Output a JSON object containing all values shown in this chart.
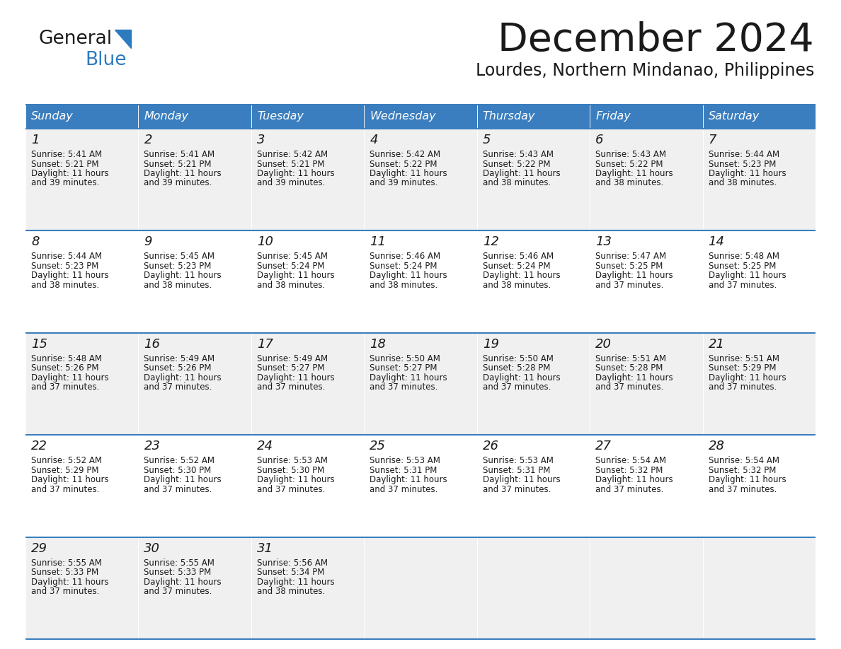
{
  "title": "December 2024",
  "subtitle": "Lourdes, Northern Mindanao, Philippines",
  "header_bg_color": "#3a7ebf",
  "header_text_color": "#ffffff",
  "cell_bg_even": "#f0f0f0",
  "cell_bg_odd": "#ffffff",
  "border_color": "#3a7ebf",
  "text_color": "#1a1a1a",
  "logo_text_color": "#2e86c1",
  "days_of_week": [
    "Sunday",
    "Monday",
    "Tuesday",
    "Wednesday",
    "Thursday",
    "Friday",
    "Saturday"
  ],
  "weeks": [
    [
      {
        "day": 1,
        "sunrise": "5:41 AM",
        "sunset": "5:21 PM",
        "daylight": "11 hours and 39 minutes."
      },
      {
        "day": 2,
        "sunrise": "5:41 AM",
        "sunset": "5:21 PM",
        "daylight": "11 hours and 39 minutes."
      },
      {
        "day": 3,
        "sunrise": "5:42 AM",
        "sunset": "5:21 PM",
        "daylight": "11 hours and 39 minutes."
      },
      {
        "day": 4,
        "sunrise": "5:42 AM",
        "sunset": "5:22 PM",
        "daylight": "11 hours and 39 minutes."
      },
      {
        "day": 5,
        "sunrise": "5:43 AM",
        "sunset": "5:22 PM",
        "daylight": "11 hours and 38 minutes."
      },
      {
        "day": 6,
        "sunrise": "5:43 AM",
        "sunset": "5:22 PM",
        "daylight": "11 hours and 38 minutes."
      },
      {
        "day": 7,
        "sunrise": "5:44 AM",
        "sunset": "5:23 PM",
        "daylight": "11 hours and 38 minutes."
      }
    ],
    [
      {
        "day": 8,
        "sunrise": "5:44 AM",
        "sunset": "5:23 PM",
        "daylight": "11 hours and 38 minutes."
      },
      {
        "day": 9,
        "sunrise": "5:45 AM",
        "sunset": "5:23 PM",
        "daylight": "11 hours and 38 minutes."
      },
      {
        "day": 10,
        "sunrise": "5:45 AM",
        "sunset": "5:24 PM",
        "daylight": "11 hours and 38 minutes."
      },
      {
        "day": 11,
        "sunrise": "5:46 AM",
        "sunset": "5:24 PM",
        "daylight": "11 hours and 38 minutes."
      },
      {
        "day": 12,
        "sunrise": "5:46 AM",
        "sunset": "5:24 PM",
        "daylight": "11 hours and 38 minutes."
      },
      {
        "day": 13,
        "sunrise": "5:47 AM",
        "sunset": "5:25 PM",
        "daylight": "11 hours and 37 minutes."
      },
      {
        "day": 14,
        "sunrise": "5:48 AM",
        "sunset": "5:25 PM",
        "daylight": "11 hours and 37 minutes."
      }
    ],
    [
      {
        "day": 15,
        "sunrise": "5:48 AM",
        "sunset": "5:26 PM",
        "daylight": "11 hours and 37 minutes."
      },
      {
        "day": 16,
        "sunrise": "5:49 AM",
        "sunset": "5:26 PM",
        "daylight": "11 hours and 37 minutes."
      },
      {
        "day": 17,
        "sunrise": "5:49 AM",
        "sunset": "5:27 PM",
        "daylight": "11 hours and 37 minutes."
      },
      {
        "day": 18,
        "sunrise": "5:50 AM",
        "sunset": "5:27 PM",
        "daylight": "11 hours and 37 minutes."
      },
      {
        "day": 19,
        "sunrise": "5:50 AM",
        "sunset": "5:28 PM",
        "daylight": "11 hours and 37 minutes."
      },
      {
        "day": 20,
        "sunrise": "5:51 AM",
        "sunset": "5:28 PM",
        "daylight": "11 hours and 37 minutes."
      },
      {
        "day": 21,
        "sunrise": "5:51 AM",
        "sunset": "5:29 PM",
        "daylight": "11 hours and 37 minutes."
      }
    ],
    [
      {
        "day": 22,
        "sunrise": "5:52 AM",
        "sunset": "5:29 PM",
        "daylight": "11 hours and 37 minutes."
      },
      {
        "day": 23,
        "sunrise": "5:52 AM",
        "sunset": "5:30 PM",
        "daylight": "11 hours and 37 minutes."
      },
      {
        "day": 24,
        "sunrise": "5:53 AM",
        "sunset": "5:30 PM",
        "daylight": "11 hours and 37 minutes."
      },
      {
        "day": 25,
        "sunrise": "5:53 AM",
        "sunset": "5:31 PM",
        "daylight": "11 hours and 37 minutes."
      },
      {
        "day": 26,
        "sunrise": "5:53 AM",
        "sunset": "5:31 PM",
        "daylight": "11 hours and 37 minutes."
      },
      {
        "day": 27,
        "sunrise": "5:54 AM",
        "sunset": "5:32 PM",
        "daylight": "11 hours and 37 minutes."
      },
      {
        "day": 28,
        "sunrise": "5:54 AM",
        "sunset": "5:32 PM",
        "daylight": "11 hours and 37 minutes."
      }
    ],
    [
      {
        "day": 29,
        "sunrise": "5:55 AM",
        "sunset": "5:33 PM",
        "daylight": "11 hours and 37 minutes."
      },
      {
        "day": 30,
        "sunrise": "5:55 AM",
        "sunset": "5:33 PM",
        "daylight": "11 hours and 37 minutes."
      },
      {
        "day": 31,
        "sunrise": "5:56 AM",
        "sunset": "5:34 PM",
        "daylight": "11 hours and 38 minutes."
      },
      null,
      null,
      null,
      null
    ]
  ]
}
